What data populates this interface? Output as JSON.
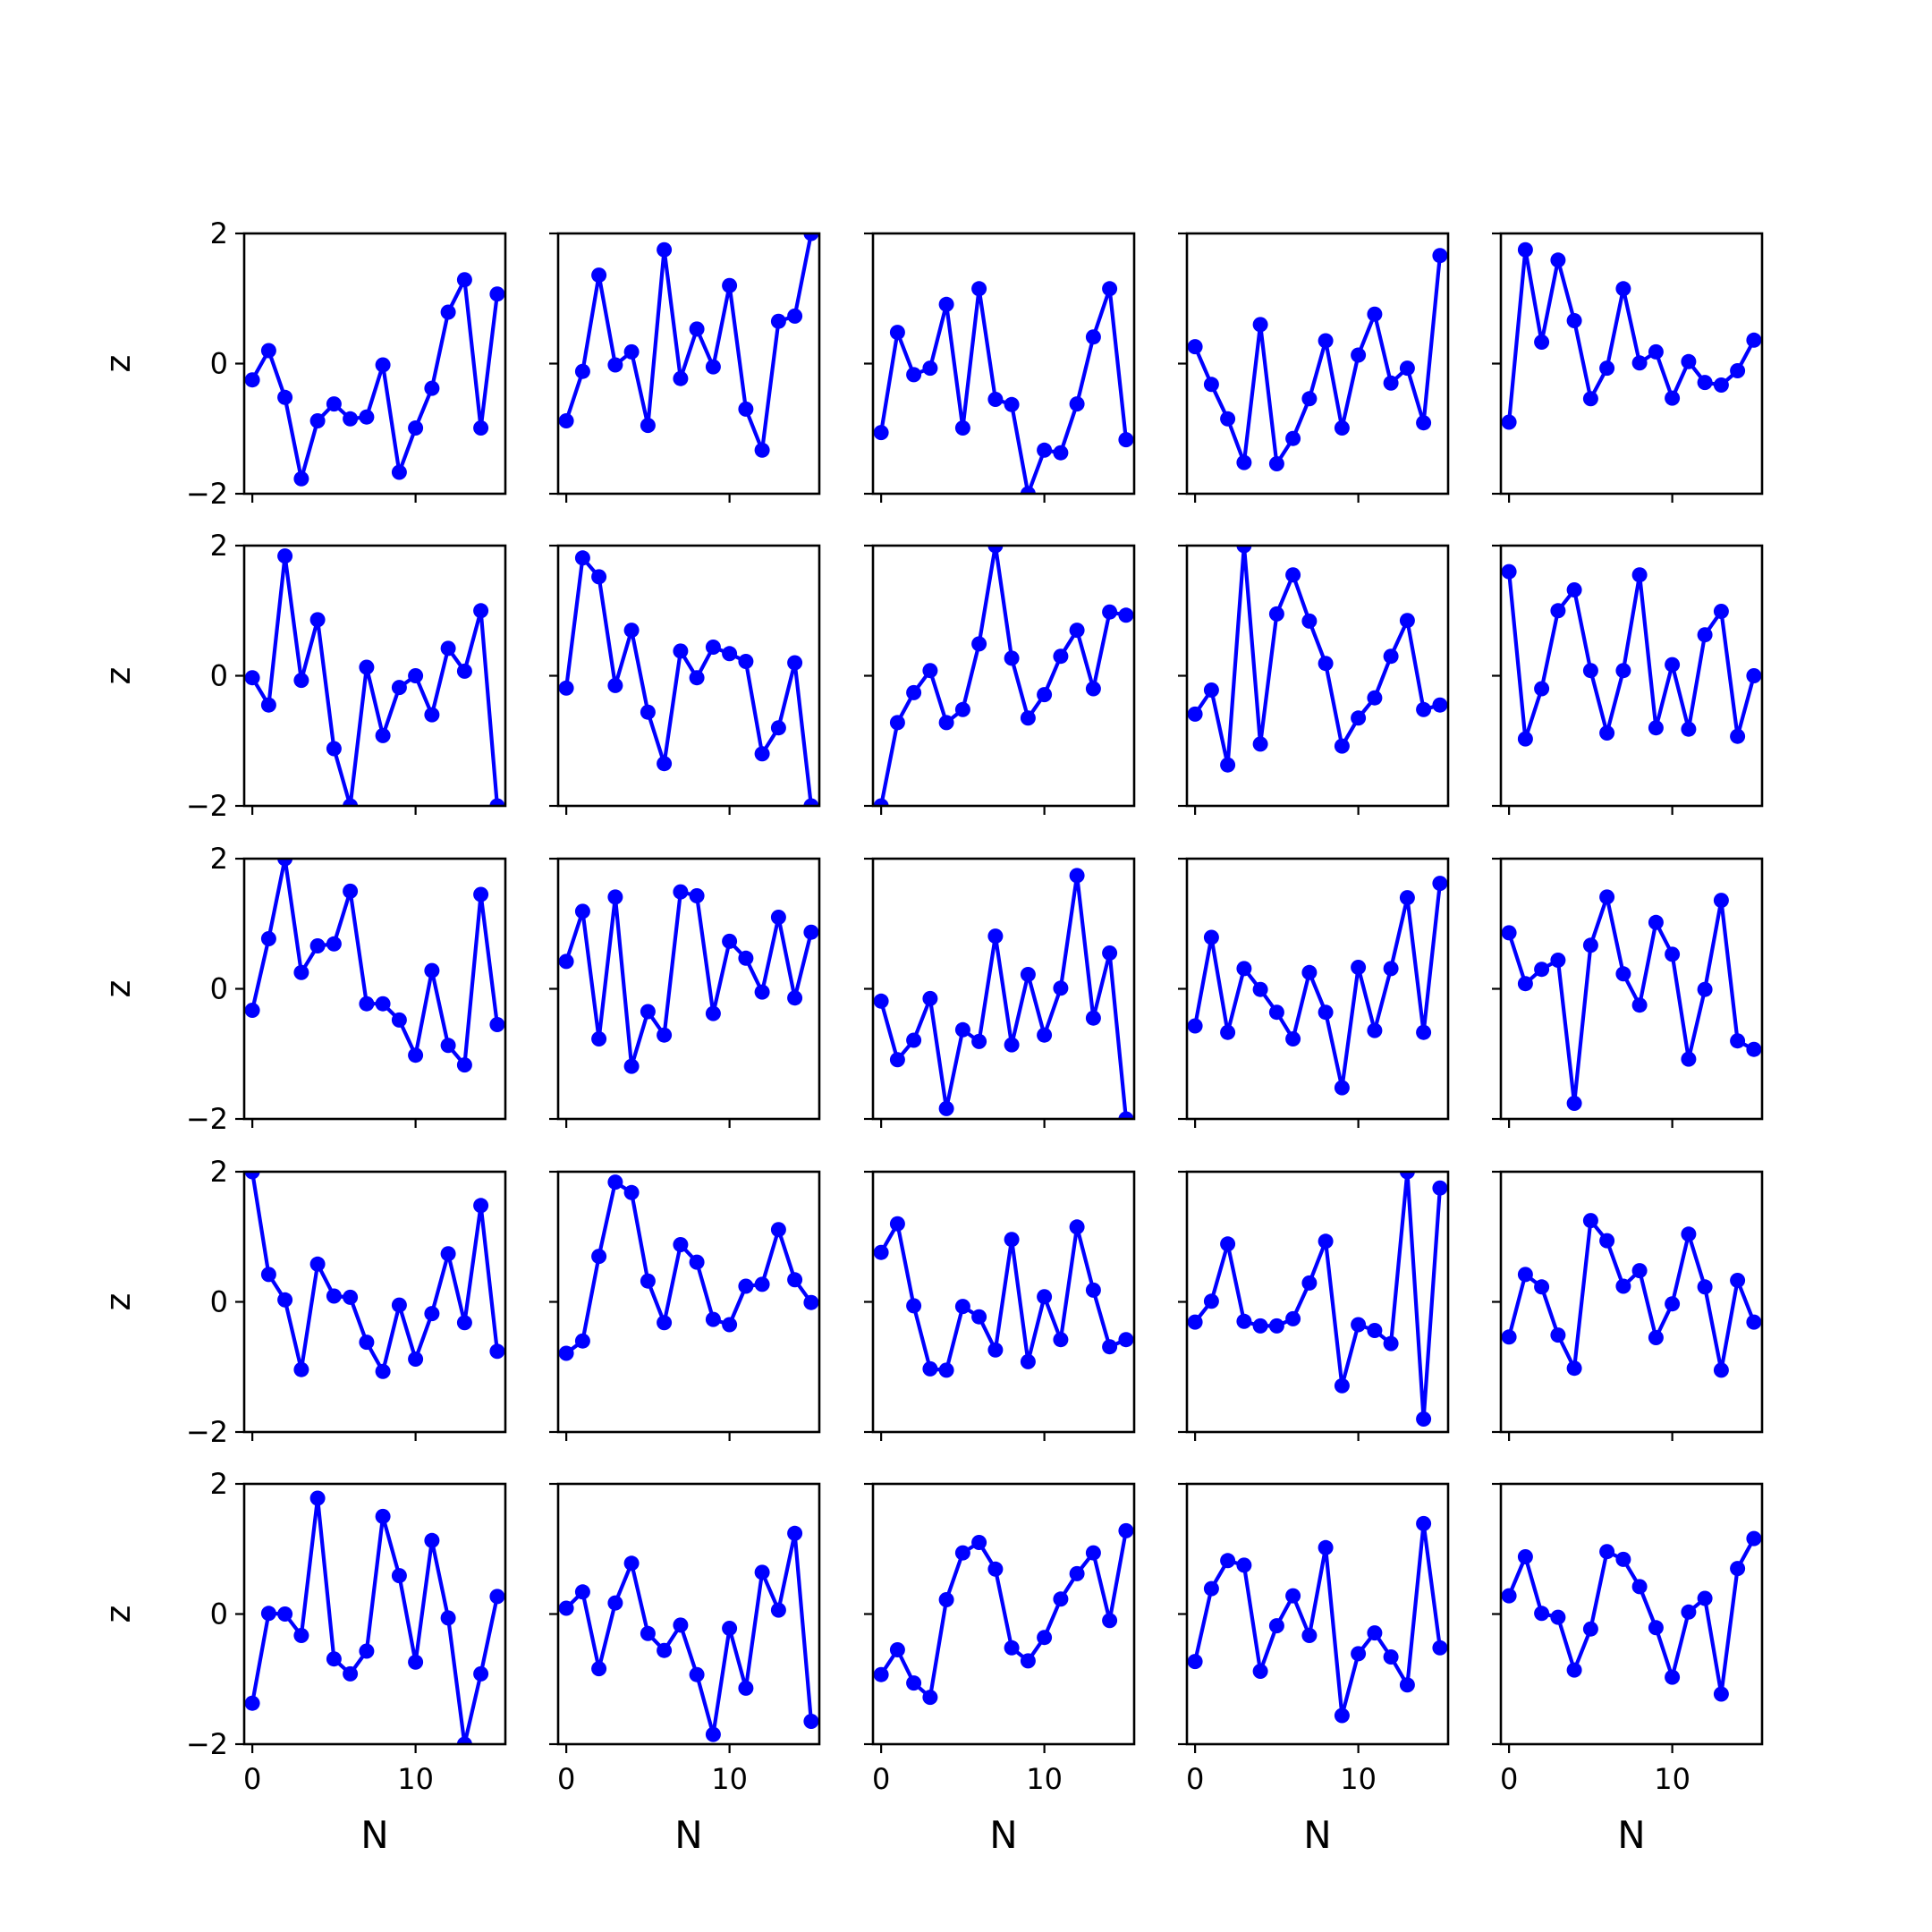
{
  "figure": {
    "xlabel": "N",
    "ylabel": "z",
    "rows": 5,
    "cols": 5,
    "line_color": "#0000ff",
    "x_ticks": [
      0,
      10
    ],
    "y_ticks": [
      -2,
      0,
      2
    ]
  },
  "chart_data": [
    {
      "type": "line",
      "xlabel": "N",
      "ylabel": "z",
      "xlim": [
        -0.5,
        15.5
      ],
      "ylim": [
        -2,
        2
      ],
      "x": [
        0,
        1,
        2,
        3,
        4,
        5,
        6,
        7,
        8,
        9,
        10,
        11,
        12,
        13,
        14,
        15
      ],
      "y": [
        -0.25,
        0.2,
        -0.52,
        -1.77,
        -0.88,
        -0.62,
        -0.85,
        -0.82,
        -0.02,
        -1.67,
        -0.99,
        -0.38,
        0.79,
        1.29,
        -0.99,
        1.07
      ]
    },
    {
      "type": "line",
      "xlabel": "N",
      "ylabel": "",
      "xlim": [
        -0.5,
        15.5
      ],
      "ylim": [
        -2,
        2
      ],
      "x": [
        0,
        1,
        2,
        3,
        4,
        5,
        6,
        7,
        8,
        9,
        10,
        11,
        12,
        13,
        14,
        15
      ],
      "y": [
        -0.88,
        -0.12,
        1.36,
        -0.02,
        0.18,
        -0.95,
        1.75,
        -0.23,
        0.53,
        -0.05,
        1.2,
        -0.7,
        -1.33,
        0.65,
        0.73,
        2.0
      ]
    },
    {
      "type": "line",
      "xlabel": "N",
      "ylabel": "",
      "xlim": [
        -0.5,
        15.5
      ],
      "ylim": [
        -2,
        2
      ],
      "x": [
        0,
        1,
        2,
        3,
        4,
        5,
        6,
        7,
        8,
        9,
        10,
        11,
        12,
        13,
        14,
        15
      ],
      "y": [
        -1.06,
        0.48,
        -0.17,
        -0.07,
        0.91,
        -0.99,
        1.15,
        -0.55,
        -0.63,
        -2.0,
        -1.33,
        -1.37,
        -0.62,
        0.41,
        1.15,
        -1.17
      ]
    },
    {
      "type": "line",
      "xlabel": "N",
      "ylabel": "",
      "xlim": [
        -0.5,
        15.5
      ],
      "ylim": [
        -2,
        2
      ],
      "x": [
        0,
        1,
        2,
        3,
        4,
        5,
        6,
        7,
        8,
        9,
        10,
        11,
        12,
        13,
        14,
        15
      ],
      "y": [
        0.26,
        -0.32,
        -0.85,
        -1.52,
        0.6,
        -1.54,
        -1.15,
        -0.54,
        0.35,
        -0.99,
        0.13,
        0.76,
        -0.3,
        -0.07,
        -0.91,
        1.66
      ]
    },
    {
      "type": "line",
      "xlabel": "N",
      "ylabel": "",
      "xlim": [
        -0.5,
        15.5
      ],
      "ylim": [
        -2,
        2
      ],
      "x": [
        0,
        1,
        2,
        3,
        4,
        5,
        6,
        7,
        8,
        9,
        10,
        11,
        12,
        13,
        14,
        15
      ],
      "y": [
        -0.9,
        1.75,
        0.33,
        1.59,
        0.66,
        -0.54,
        -0.07,
        1.15,
        0.01,
        0.18,
        -0.53,
        0.03,
        -0.29,
        -0.33,
        -0.11,
        0.36
      ]
    },
    {
      "type": "line",
      "xlabel": "N",
      "ylabel": "z",
      "xlim": [
        -0.5,
        15.5
      ],
      "ylim": [
        -2,
        2
      ],
      "x": [
        0,
        1,
        2,
        3,
        4,
        5,
        6,
        7,
        8,
        9,
        10,
        11,
        12,
        13,
        14,
        15
      ],
      "y": [
        -0.03,
        -0.45,
        1.84,
        -0.07,
        0.86,
        -1.12,
        -2.0,
        0.13,
        -0.92,
        -0.18,
        0.0,
        -0.6,
        0.42,
        0.07,
        1.0,
        -2.0
      ]
    },
    {
      "type": "line",
      "xlabel": "N",
      "ylabel": "",
      "xlim": [
        -0.5,
        15.5
      ],
      "ylim": [
        -2,
        2
      ],
      "x": [
        0,
        1,
        2,
        3,
        4,
        5,
        6,
        7,
        8,
        9,
        10,
        11,
        12,
        13,
        14,
        15
      ],
      "y": [
        -0.19,
        1.81,
        1.52,
        -0.15,
        0.7,
        -0.56,
        -1.35,
        0.38,
        -0.03,
        0.44,
        0.34,
        0.22,
        -1.2,
        -0.8,
        0.2,
        -2.0
      ]
    },
    {
      "type": "line",
      "xlabel": "N",
      "ylabel": "",
      "xlim": [
        -0.5,
        15.5
      ],
      "ylim": [
        -2,
        2
      ],
      "x": [
        0,
        1,
        2,
        3,
        4,
        5,
        6,
        7,
        8,
        9,
        10,
        11,
        12,
        13,
        14,
        15
      ],
      "y": [
        -2.0,
        -0.72,
        -0.26,
        0.08,
        -0.72,
        -0.52,
        0.49,
        2.0,
        0.27,
        -0.65,
        -0.29,
        0.3,
        0.7,
        -0.2,
        0.98,
        0.93
      ]
    },
    {
      "type": "line",
      "xlabel": "N",
      "ylabel": "",
      "xlim": [
        -0.5,
        15.5
      ],
      "ylim": [
        -2,
        2
      ],
      "x": [
        0,
        1,
        2,
        3,
        4,
        5,
        6,
        7,
        8,
        9,
        10,
        11,
        12,
        13,
        14,
        15
      ],
      "y": [
        -0.59,
        -0.22,
        -1.37,
        2.0,
        -1.05,
        0.95,
        1.55,
        0.84,
        0.19,
        -1.08,
        -0.65,
        -0.34,
        0.3,
        0.85,
        -0.52,
        -0.45
      ]
    },
    {
      "type": "line",
      "xlabel": "N",
      "ylabel": "",
      "xlim": [
        -0.5,
        15.5
      ],
      "ylim": [
        -2,
        2
      ],
      "x": [
        0,
        1,
        2,
        3,
        4,
        5,
        6,
        7,
        8,
        9,
        10,
        11,
        12,
        13,
        14,
        15
      ],
      "y": [
        1.6,
        -0.97,
        -0.2,
        1.0,
        1.32,
        0.08,
        -0.88,
        0.08,
        1.55,
        -0.8,
        0.17,
        -0.82,
        0.63,
        0.99,
        -0.93,
        0.0
      ]
    },
    {
      "type": "line",
      "xlabel": "N",
      "ylabel": "z",
      "xlim": [
        -0.5,
        15.5
      ],
      "ylim": [
        -2,
        2
      ],
      "x": [
        0,
        1,
        2,
        3,
        4,
        5,
        6,
        7,
        8,
        9,
        10,
        11,
        12,
        13,
        14,
        15
      ],
      "y": [
        -0.33,
        0.77,
        2.0,
        0.25,
        0.66,
        0.69,
        1.5,
        -0.23,
        -0.23,
        -0.48,
        -1.02,
        0.28,
        -0.87,
        -1.17,
        1.45,
        -0.55
      ]
    },
    {
      "type": "line",
      "xlabel": "N",
      "ylabel": "",
      "xlim": [
        -0.5,
        15.5
      ],
      "ylim": [
        -2,
        2
      ],
      "x": [
        0,
        1,
        2,
        3,
        4,
        5,
        6,
        7,
        8,
        9,
        10,
        11,
        12,
        13,
        14,
        15
      ],
      "y": [
        0.42,
        1.19,
        -0.77,
        1.41,
        -1.19,
        -0.35,
        -0.71,
        1.49,
        1.43,
        -0.38,
        0.73,
        0.47,
        -0.05,
        1.1,
        -0.14,
        0.87
      ]
    },
    {
      "type": "line",
      "xlabel": "N",
      "ylabel": "",
      "xlim": [
        -0.5,
        15.5
      ],
      "ylim": [
        -2,
        2
      ],
      "x": [
        0,
        1,
        2,
        3,
        4,
        5,
        6,
        7,
        8,
        9,
        10,
        11,
        12,
        13,
        14,
        15
      ],
      "y": [
        -0.19,
        -1.09,
        -0.79,
        -0.15,
        -1.84,
        -0.63,
        -0.81,
        0.81,
        -0.86,
        0.22,
        -0.71,
        0.01,
        1.74,
        -0.45,
        0.55,
        -2.0
      ]
    },
    {
      "type": "line",
      "xlabel": "N",
      "ylabel": "",
      "xlim": [
        -0.5,
        15.5
      ],
      "ylim": [
        -2,
        2
      ],
      "x": [
        0,
        1,
        2,
        3,
        4,
        5,
        6,
        7,
        8,
        9,
        10,
        11,
        12,
        13,
        14,
        15
      ],
      "y": [
        -0.57,
        0.79,
        -0.67,
        0.31,
        -0.01,
        -0.36,
        -0.77,
        0.25,
        -0.36,
        -1.52,
        0.33,
        -0.64,
        0.31,
        1.4,
        -0.67,
        1.62
      ]
    },
    {
      "type": "line",
      "xlabel": "N",
      "ylabel": "",
      "xlim": [
        -0.5,
        15.5
      ],
      "ylim": [
        -2,
        2
      ],
      "x": [
        0,
        1,
        2,
        3,
        4,
        5,
        6,
        7,
        8,
        9,
        10,
        11,
        12,
        13,
        14,
        15
      ],
      "y": [
        0.86,
        0.08,
        0.3,
        0.44,
        -1.76,
        0.67,
        1.41,
        0.23,
        -0.25,
        1.02,
        0.53,
        -1.08,
        -0.01,
        1.36,
        -0.8,
        -0.93
      ]
    },
    {
      "type": "line",
      "xlabel": "N",
      "ylabel": "z",
      "xlim": [
        -0.5,
        15.5
      ],
      "ylim": [
        -2,
        2
      ],
      "x": [
        0,
        1,
        2,
        3,
        4,
        5,
        6,
        7,
        8,
        9,
        10,
        11,
        12,
        13,
        14,
        15
      ],
      "y": [
        2.0,
        0.42,
        0.03,
        -1.04,
        0.58,
        0.09,
        0.07,
        -0.62,
        -1.07,
        -0.05,
        -0.88,
        -0.18,
        0.74,
        -0.32,
        1.48,
        -0.76
      ]
    },
    {
      "type": "line",
      "xlabel": "N",
      "ylabel": "",
      "xlim": [
        -0.5,
        15.5
      ],
      "ylim": [
        -2,
        2
      ],
      "x": [
        0,
        1,
        2,
        3,
        4,
        5,
        6,
        7,
        8,
        9,
        10,
        11,
        12,
        13,
        14,
        15
      ],
      "y": [
        -0.79,
        -0.6,
        0.7,
        1.84,
        1.68,
        0.32,
        -0.32,
        0.88,
        0.61,
        -0.27,
        -0.35,
        0.24,
        0.27,
        1.11,
        0.34,
        -0.01
      ]
    },
    {
      "type": "line",
      "xlabel": "N",
      "ylabel": "",
      "xlim": [
        -0.5,
        15.5
      ],
      "ylim": [
        -2,
        2
      ],
      "x": [
        0,
        1,
        2,
        3,
        4,
        5,
        6,
        7,
        8,
        9,
        10,
        11,
        12,
        13,
        14,
        15
      ],
      "y": [
        0.76,
        1.2,
        -0.06,
        -1.03,
        -1.05,
        -0.07,
        -0.23,
        -0.74,
        0.96,
        -0.92,
        0.08,
        -0.58,
        1.15,
        0.18,
        -0.69,
        -0.58
      ]
    },
    {
      "type": "line",
      "xlabel": "N",
      "ylabel": "",
      "xlim": [
        -0.5,
        15.5
      ],
      "ylim": [
        -2,
        2
      ],
      "x": [
        0,
        1,
        2,
        3,
        4,
        5,
        6,
        7,
        8,
        9,
        10,
        11,
        12,
        13,
        14,
        15
      ],
      "y": [
        -0.31,
        0.01,
        0.89,
        -0.3,
        -0.37,
        -0.37,
        -0.26,
        0.29,
        0.93,
        -1.29,
        -0.35,
        -0.44,
        -0.64,
        2.0,
        -1.8,
        1.75
      ]
    },
    {
      "type": "line",
      "xlabel": "N",
      "ylabel": "",
      "xlim": [
        -0.5,
        15.5
      ],
      "ylim": [
        -2,
        2
      ],
      "x": [
        0,
        1,
        2,
        3,
        4,
        5,
        6,
        7,
        8,
        9,
        10,
        11,
        12,
        13,
        14,
        15
      ],
      "y": [
        -0.54,
        0.42,
        0.23,
        -0.51,
        -1.02,
        1.25,
        0.94,
        0.24,
        0.48,
        -0.55,
        -0.03,
        1.04,
        0.23,
        -1.05,
        0.33,
        -0.31
      ]
    },
    {
      "type": "line",
      "xlabel": "N",
      "ylabel": "z",
      "xlim": [
        -0.5,
        15.5
      ],
      "ylim": [
        -2,
        2
      ],
      "x": [
        0,
        1,
        2,
        3,
        4,
        5,
        6,
        7,
        8,
        9,
        10,
        11,
        12,
        13,
        14,
        15
      ],
      "y": [
        -1.37,
        0.01,
        0.0,
        -0.33,
        1.78,
        -0.69,
        -0.92,
        -0.57,
        1.5,
        0.59,
        -0.74,
        1.13,
        -0.06,
        -2.0,
        -0.92,
        0.27
      ]
    },
    {
      "type": "line",
      "xlabel": "N",
      "ylabel": "",
      "xlim": [
        -0.5,
        15.5
      ],
      "ylim": [
        -2,
        2
      ],
      "x": [
        0,
        1,
        2,
        3,
        4,
        5,
        6,
        7,
        8,
        9,
        10,
        11,
        12,
        13,
        14,
        15
      ],
      "y": [
        0.09,
        0.34,
        -0.84,
        0.17,
        0.78,
        -0.3,
        -0.56,
        -0.17,
        -0.93,
        -1.85,
        -0.22,
        -1.14,
        0.64,
        0.06,
        1.24,
        -1.65
      ]
    },
    {
      "type": "line",
      "xlabel": "N",
      "ylabel": "",
      "xlim": [
        -0.5,
        15.5
      ],
      "ylim": [
        -2,
        2
      ],
      "x": [
        0,
        1,
        2,
        3,
        4,
        5,
        6,
        7,
        8,
        9,
        10,
        11,
        12,
        13,
        14,
        15
      ],
      "y": [
        -0.93,
        -0.55,
        -1.06,
        -1.28,
        0.22,
        0.94,
        1.1,
        0.69,
        -0.52,
        -0.72,
        -0.36,
        0.23,
        0.62,
        0.94,
        -0.1,
        1.28
      ]
    },
    {
      "type": "line",
      "xlabel": "N",
      "ylabel": "",
      "xlim": [
        -0.5,
        15.5
      ],
      "ylim": [
        -2,
        2
      ],
      "x": [
        0,
        1,
        2,
        3,
        4,
        5,
        6,
        7,
        8,
        9,
        10,
        11,
        12,
        13,
        14,
        15
      ],
      "y": [
        -0.73,
        0.39,
        0.82,
        0.75,
        -0.88,
        -0.18,
        0.28,
        -0.33,
        1.02,
        -1.56,
        -0.61,
        -0.29,
        -0.66,
        -1.09,
        1.39,
        -0.52
      ]
    },
    {
      "type": "line",
      "xlabel": "N",
      "ylabel": "",
      "xlim": [
        -0.5,
        15.5
      ],
      "ylim": [
        -2,
        2
      ],
      "x": [
        0,
        1,
        2,
        3,
        4,
        5,
        6,
        7,
        8,
        9,
        10,
        11,
        12,
        13,
        14,
        15
      ],
      "y": [
        0.28,
        0.88,
        0.01,
        -0.05,
        -0.86,
        -0.23,
        0.96,
        0.84,
        0.42,
        -0.21,
        -0.97,
        0.03,
        0.24,
        -1.23,
        0.7,
        1.16
      ]
    }
  ]
}
